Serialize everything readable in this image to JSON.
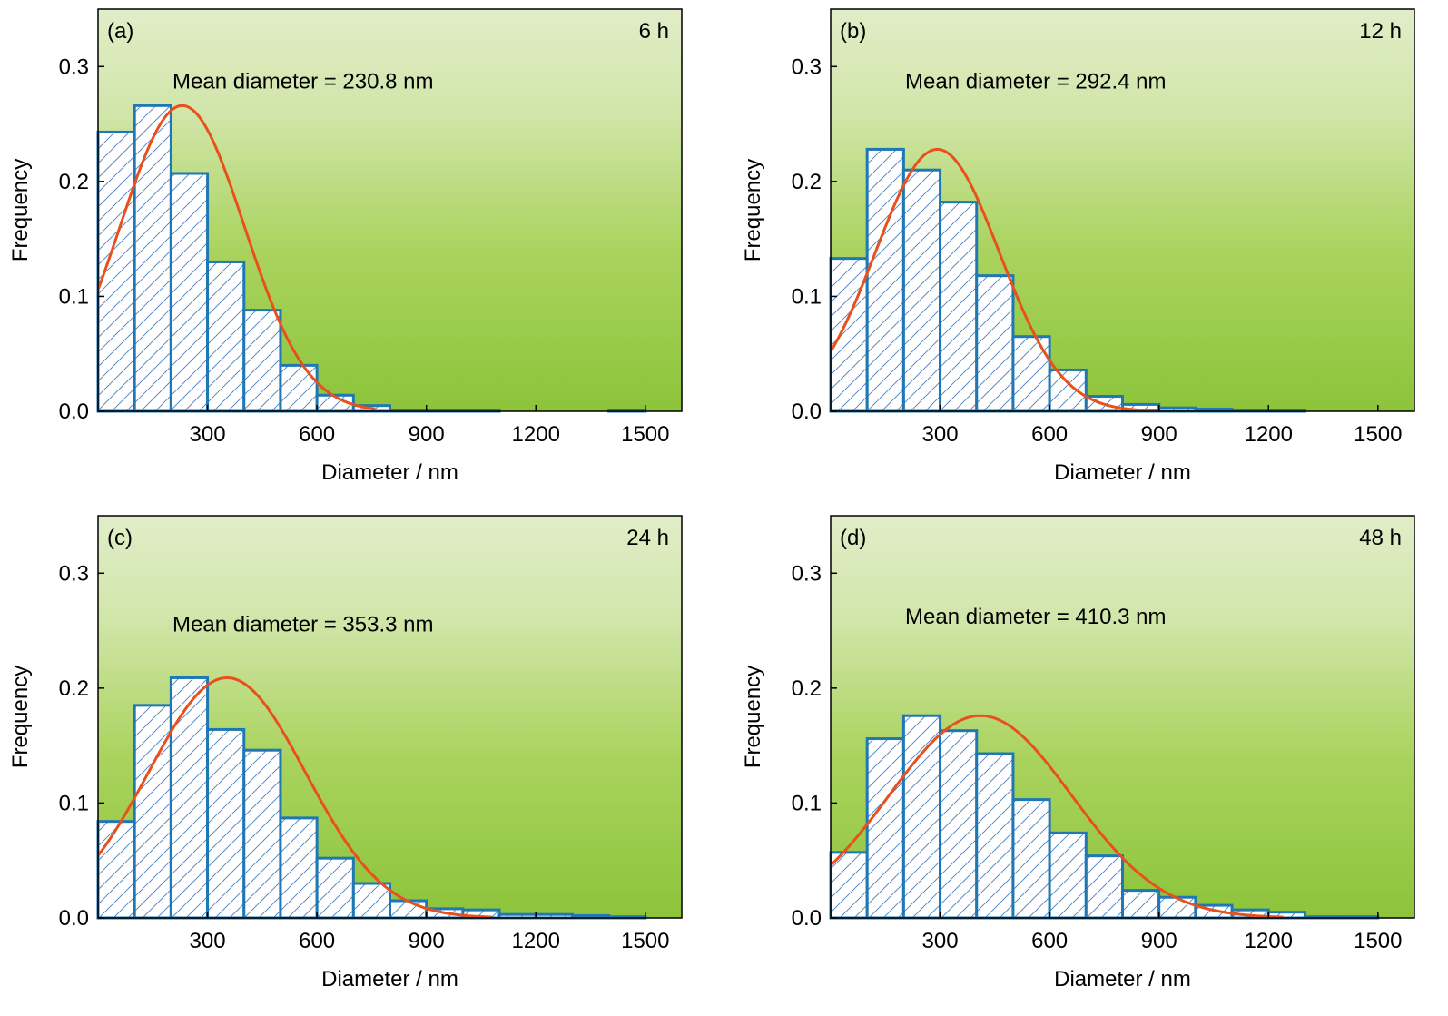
{
  "chart_data": [
    {
      "type": "bar",
      "panel_label": "(a)",
      "time_label": "6 h",
      "annotation": "Mean diameter = 230.8 nm",
      "xlabel": "Diameter / nm",
      "ylabel": "Frequency",
      "xlim": [
        0,
        1600
      ],
      "ylim": [
        0,
        0.35
      ],
      "xticks": [
        "300",
        "600",
        "900",
        "1200",
        "1500"
      ],
      "yticks": [
        "0.0",
        "0.1",
        "0.2",
        "0.3"
      ],
      "bin_width": 100,
      "bin_starts": [
        0,
        100,
        200,
        300,
        400,
        500,
        600,
        700,
        800,
        900,
        1000,
        1100,
        1200,
        1300,
        1400,
        1500
      ],
      "values": [
        0.243,
        0.266,
        0.207,
        0.13,
        0.088,
        0.04,
        0.014,
        0.005,
        0.001,
        0.001,
        0.001,
        0,
        0,
        0,
        0.0005,
        0
      ],
      "fit": {
        "type": "gaussian",
        "mean": 230.8,
        "peak": 0.266,
        "sigma": 170,
        "x_range": [
          0,
          760
        ]
      },
      "colors": {
        "bar_edge": "#1f77b4",
        "hatch": "#4a7fc1",
        "fit": "#e8501e",
        "bg_top": "#e1edc8",
        "bg_bottom": "#8cc43a"
      }
    },
    {
      "type": "bar",
      "panel_label": "(b)",
      "time_label": "12 h",
      "annotation": "Mean diameter = 292.4 nm",
      "xlabel": "Diameter / nm",
      "ylabel": "Frequency",
      "xlim": [
        0,
        1600
      ],
      "ylim": [
        0,
        0.35
      ],
      "xticks": [
        "300",
        "600",
        "900",
        "1200",
        "1500"
      ],
      "yticks": [
        "0.0",
        "0.1",
        "0.2",
        "0.3"
      ],
      "bin_width": 100,
      "bin_starts": [
        0,
        100,
        200,
        300,
        400,
        500,
        600,
        700,
        800,
        900,
        1000,
        1100,
        1200,
        1300,
        1400,
        1500
      ],
      "values": [
        0.133,
        0.228,
        0.21,
        0.182,
        0.118,
        0.065,
        0.036,
        0.013,
        0.006,
        0.003,
        0.002,
        0.001,
        0.001,
        0,
        0,
        0
      ],
      "fit": {
        "type": "gaussian",
        "mean": 292.4,
        "peak": 0.228,
        "sigma": 170,
        "x_range": [
          0,
          900
        ]
      },
      "colors": {
        "bar_edge": "#1f77b4",
        "hatch": "#4a7fc1",
        "fit": "#e8501e",
        "bg_top": "#e1edc8",
        "bg_bottom": "#8cc43a"
      }
    },
    {
      "type": "bar",
      "panel_label": "(c)",
      "time_label": "24 h",
      "annotation": "Mean diameter = 353.3 nm",
      "xlabel": "Diameter / nm",
      "ylabel": "Frequency",
      "xlim": [
        0,
        1600
      ],
      "ylim": [
        0,
        0.35
      ],
      "xticks": [
        "300",
        "600",
        "900",
        "1200",
        "1500"
      ],
      "yticks": [
        "0.0",
        "0.1",
        "0.2",
        "0.3"
      ],
      "bin_width": 100,
      "bin_starts": [
        0,
        100,
        200,
        300,
        400,
        500,
        600,
        700,
        800,
        900,
        1000,
        1100,
        1200,
        1300,
        1400,
        1500
      ],
      "values": [
        0.084,
        0.185,
        0.209,
        0.164,
        0.146,
        0.087,
        0.052,
        0.03,
        0.015,
        0.008,
        0.007,
        0.003,
        0.003,
        0.002,
        0.001,
        0
      ],
      "fit": {
        "type": "gaussian",
        "mean": 353.3,
        "peak": 0.209,
        "sigma": 215,
        "x_range": [
          0,
          1080
        ]
      },
      "colors": {
        "bar_edge": "#1f77b4",
        "hatch": "#4a7fc1",
        "fit": "#e8501e",
        "bg_top": "#e1edc8",
        "bg_bottom": "#8cc43a"
      }
    },
    {
      "type": "bar",
      "panel_label": "(d)",
      "time_label": "48 h",
      "annotation": "Mean diameter = 410.3 nm",
      "xlabel": "Diameter / nm",
      "ylabel": "Frequency",
      "xlim": [
        0,
        1600
      ],
      "ylim": [
        0,
        0.35
      ],
      "xticks": [
        "300",
        "600",
        "900",
        "1200",
        "1500"
      ],
      "yticks": [
        "0.0",
        "0.1",
        "0.2",
        "0.3"
      ],
      "bin_width": 100,
      "bin_starts": [
        0,
        100,
        200,
        300,
        400,
        500,
        600,
        700,
        800,
        900,
        1000,
        1100,
        1200,
        1300,
        1400,
        1500
      ],
      "values": [
        0.057,
        0.156,
        0.176,
        0.163,
        0.143,
        0.103,
        0.074,
        0.054,
        0.024,
        0.018,
        0.011,
        0.007,
        0.005,
        0.001,
        0.001,
        0
      ],
      "fit": {
        "type": "gaussian",
        "mean": 410.3,
        "peak": 0.176,
        "sigma": 250,
        "x_range": [
          0,
          1240
        ]
      },
      "colors": {
        "bar_edge": "#1f77b4",
        "hatch": "#4a7fc1",
        "fit": "#e8501e",
        "bg_top": "#e1edc8",
        "bg_bottom": "#8cc43a"
      }
    }
  ]
}
